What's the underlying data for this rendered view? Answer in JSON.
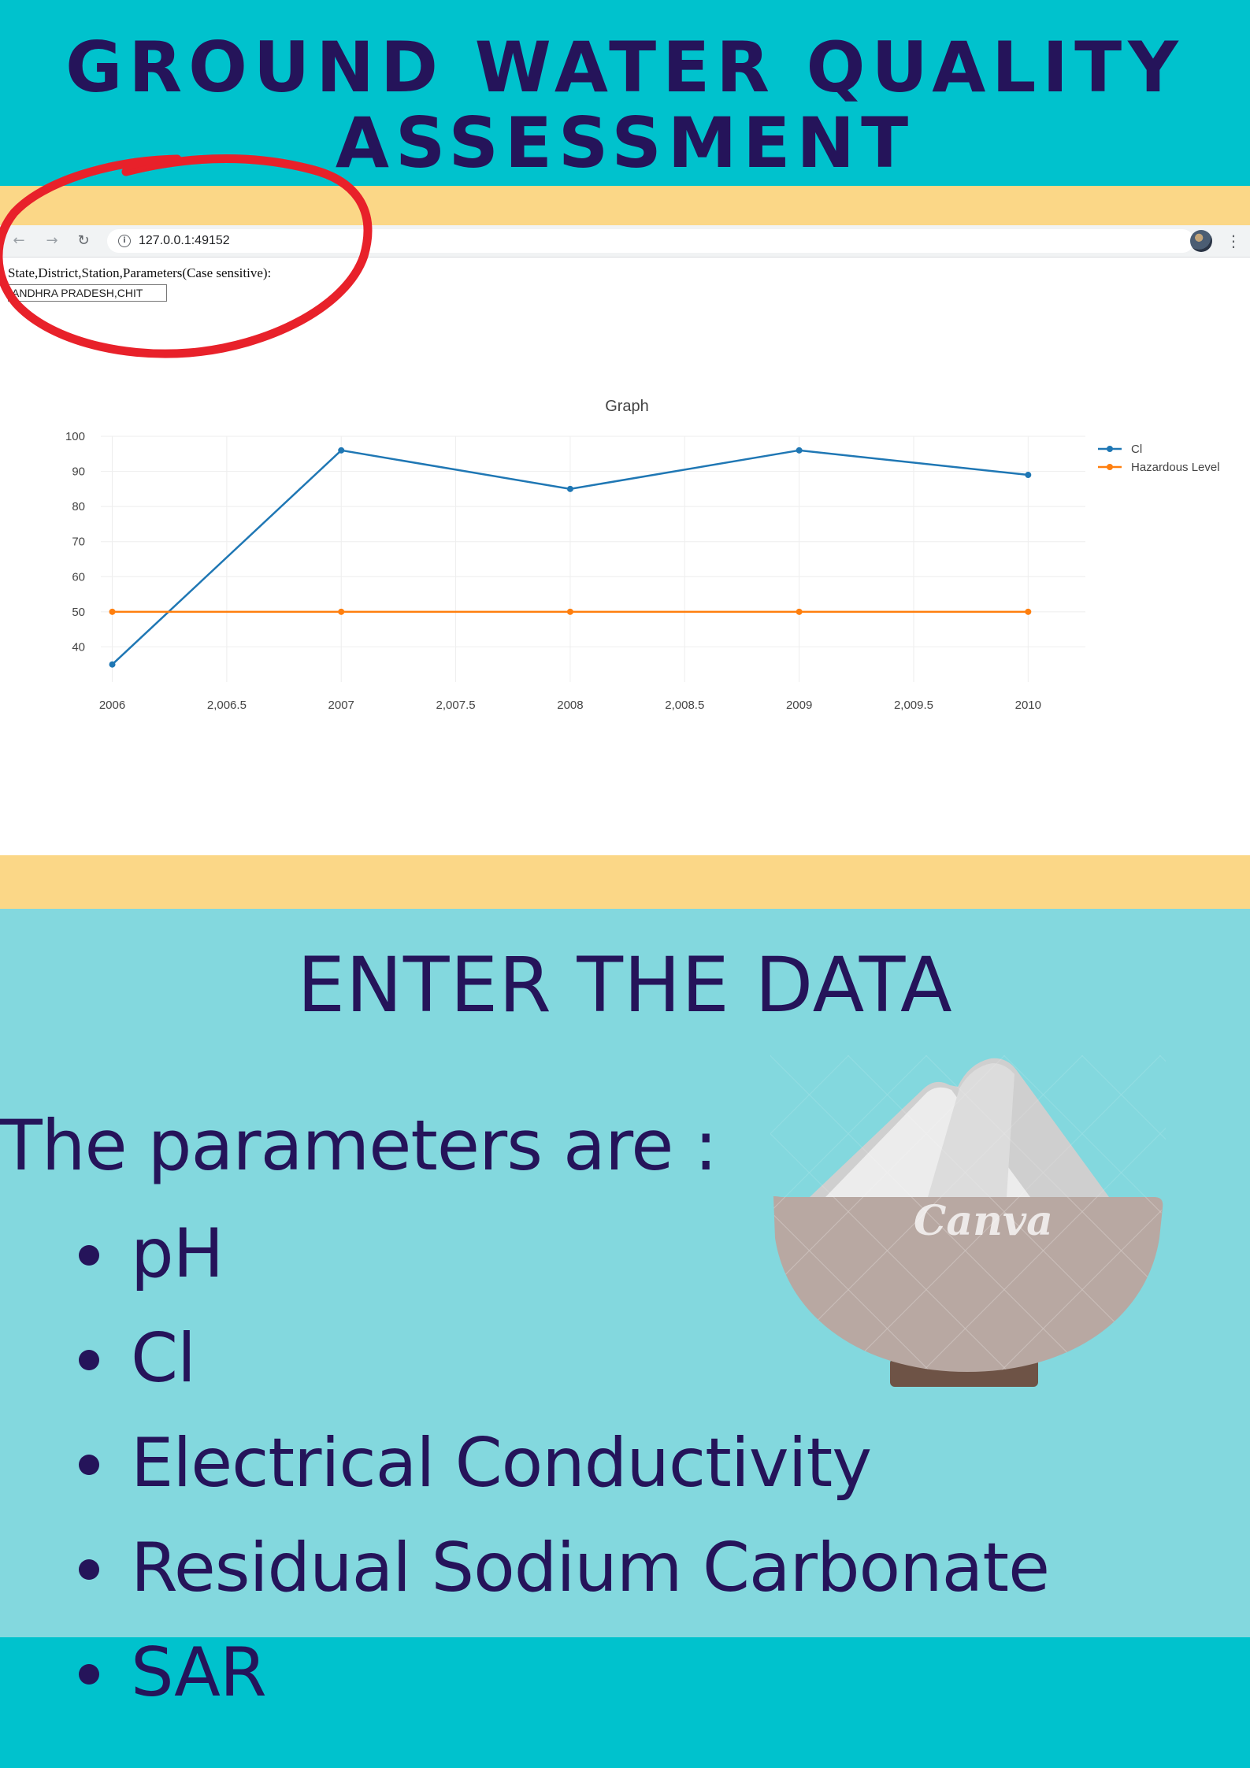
{
  "poster": {
    "title_line1": "GROUND WATER QUALITY",
    "title_line2": "ASSESSMENT"
  },
  "browser": {
    "url": "127.0.0.1:49152",
    "icons": [
      "back-arrow-icon",
      "forward-arrow-icon",
      "reload-icon",
      "info-icon",
      "star-icon",
      "avatar",
      "kebab-menu-icon"
    ]
  },
  "form": {
    "label": "State,District,Station,Parameters(Case sensitive):",
    "input_value": "ANDHRA PRADESH,CHIT"
  },
  "chart_data": {
    "type": "line",
    "title": "Graph",
    "xlabel": "",
    "ylabel": "",
    "x_ticks": [
      "2006",
      "2,006.5",
      "2007",
      "2,007.5",
      "2008",
      "2,008.5",
      "2009",
      "2,009.5",
      "2010"
    ],
    "y_ticks": [
      40,
      50,
      60,
      70,
      80,
      90,
      100
    ],
    "xlim": [
      2005.95,
      2010.25
    ],
    "ylim": [
      30,
      100
    ],
    "grid": true,
    "legend_position": "top-right",
    "series": [
      {
        "name": "Cl",
        "color": "#1f77b4",
        "x": [
          2006,
          2007,
          2008,
          2009,
          2010
        ],
        "y": [
          35,
          96,
          85,
          96,
          89
        ]
      },
      {
        "name": "Hazardous Level",
        "color": "#ff7f0e",
        "x": [
          2006,
          2007,
          2008,
          2009,
          2010
        ],
        "y": [
          50,
          50,
          50,
          50,
          50
        ]
      }
    ]
  },
  "section": {
    "heading": "ENTER THE DATA",
    "intro": "The parameters are :",
    "parameters": [
      "pH",
      "Cl",
      "Electrical Conductivity",
      "Residual Sodium Carbonate",
      "SAR"
    ]
  },
  "illustration": {
    "watermark": "Canva"
  },
  "colors": {
    "teal": "#00c2cd",
    "light_teal": "#83d8de",
    "tan": "#fbd787",
    "navy": "#25145a",
    "annotation_red": "#e8212a"
  }
}
